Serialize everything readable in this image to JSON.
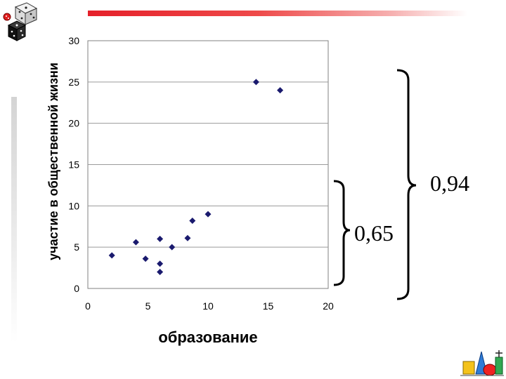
{
  "chart_data": {
    "type": "scatter",
    "title": "",
    "xlabel": "образование",
    "ylabel": "участие в общественной жизни",
    "xlim": [
      0,
      20
    ],
    "ylim": [
      0,
      30
    ],
    "xticks": [
      0,
      5,
      10,
      15,
      20
    ],
    "yticks": [
      0,
      5,
      10,
      15,
      20,
      25,
      30
    ],
    "grid": "horizontal",
    "marker": "diamond",
    "marker_color": "#1a1a6e",
    "x": [
      2,
      4,
      4.8,
      6,
      6,
      6,
      7,
      8.3,
      8.7,
      10,
      14,
      16
    ],
    "y": [
      4,
      5.6,
      3.6,
      6,
      3,
      2,
      5,
      6.1,
      8.2,
      9,
      25,
      24
    ]
  },
  "annotations": {
    "inner_corr": "0,65",
    "outer_corr": "0,94"
  },
  "decor": {
    "accent_color": "#e5202a",
    "top_left_icon": "dice-icon",
    "bottom_right_icon": "geometry-shapes-icon"
  }
}
